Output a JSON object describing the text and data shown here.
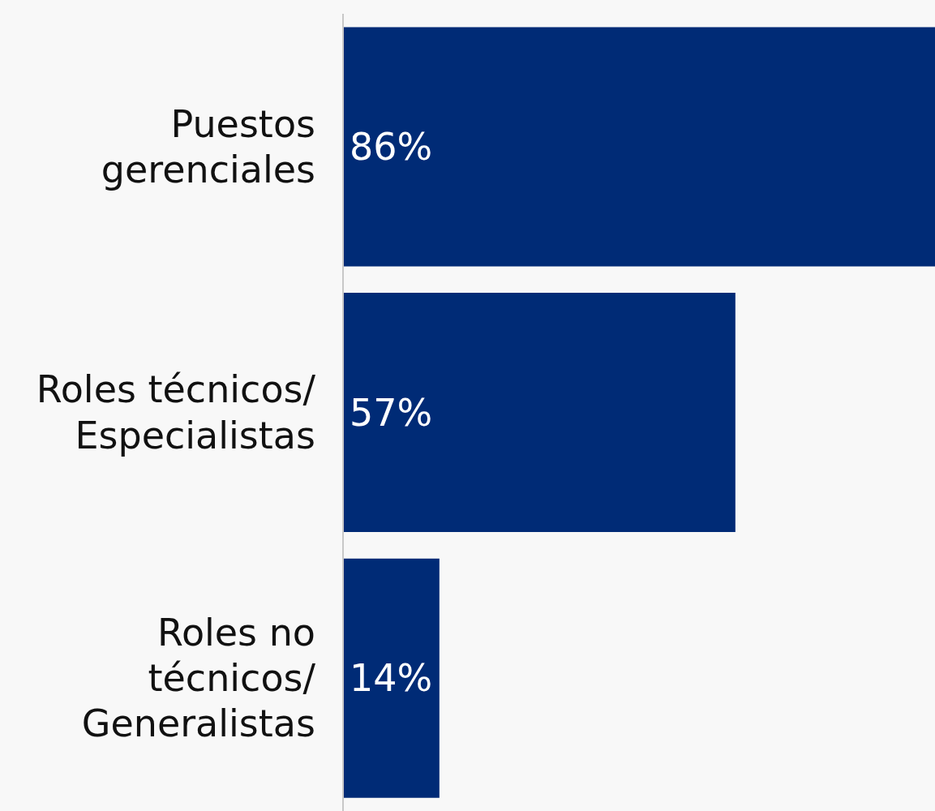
{
  "chart_data": {
    "type": "bar",
    "orientation": "horizontal",
    "categories": [
      "Puestos gerenciales",
      "Roles técnicos/Especialistas",
      "Roles no técnicos/Generalistas"
    ],
    "values": [
      86,
      57,
      14
    ],
    "value_labels": [
      "86%",
      "57%",
      "14%"
    ],
    "color": "#002b76",
    "xlim": [
      0,
      86
    ],
    "tick_labels": "y"
  }
}
